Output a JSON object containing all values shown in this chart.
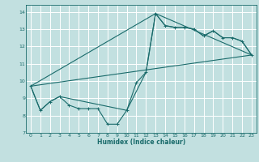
{
  "xlabel": "Humidex (Indice chaleur)",
  "bg_color": "#c2e0e0",
  "grid_color": "#ffffff",
  "line_color": "#1a6b6b",
  "xlim": [
    -0.5,
    23.5
  ],
  "ylim": [
    7.0,
    14.4
  ],
  "xticks": [
    0,
    1,
    2,
    3,
    4,
    5,
    6,
    7,
    8,
    9,
    10,
    11,
    12,
    13,
    14,
    15,
    16,
    17,
    18,
    19,
    20,
    21,
    22,
    23
  ],
  "yticks": [
    7,
    8,
    9,
    10,
    11,
    12,
    13,
    14
  ],
  "line1_x": [
    0,
    1,
    2,
    3,
    4,
    5,
    6,
    7,
    8,
    9,
    10,
    11,
    12,
    13,
    14,
    15,
    16,
    17,
    18,
    19,
    20,
    21,
    22,
    23
  ],
  "line1_y": [
    9.7,
    8.3,
    8.8,
    9.1,
    8.6,
    8.4,
    8.4,
    8.4,
    7.5,
    7.5,
    8.3,
    9.9,
    10.5,
    13.9,
    13.2,
    13.1,
    13.1,
    13.0,
    12.6,
    12.9,
    12.5,
    12.5,
    12.3,
    11.5
  ],
  "line2_x": [
    0,
    1,
    2,
    3,
    10,
    12,
    13,
    14,
    15,
    16,
    17,
    18,
    19,
    20,
    21,
    22,
    23
  ],
  "line2_y": [
    9.7,
    8.3,
    8.8,
    9.1,
    8.3,
    10.5,
    13.9,
    13.2,
    13.1,
    13.1,
    13.0,
    12.6,
    12.9,
    12.5,
    12.5,
    12.3,
    11.5
  ],
  "line3_x": [
    0,
    23
  ],
  "line3_y": [
    9.7,
    11.5
  ],
  "line4_x": [
    0,
    13,
    23
  ],
  "line4_y": [
    9.7,
    13.9,
    11.5
  ]
}
